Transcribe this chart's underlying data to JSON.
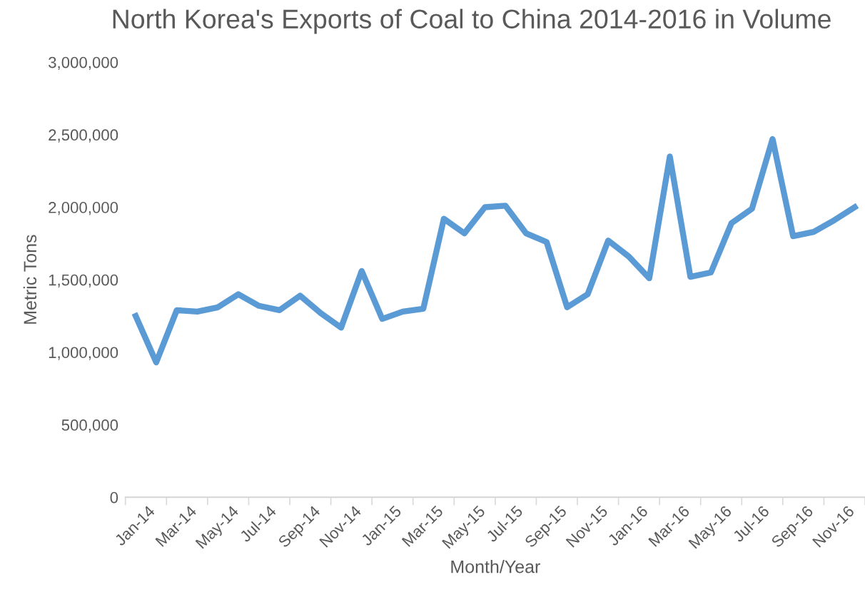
{
  "chart_data": {
    "type": "line",
    "title": "North Korea's Exports of Coal to China 2014-2016 in Volume",
    "xlabel": "Month/Year",
    "ylabel": "Metric Tons",
    "categories": [
      "Jan-14",
      null,
      "Mar-14",
      null,
      "May-14",
      null,
      "Jul-14",
      null,
      "Sep-14",
      null,
      "Nov-14",
      null,
      "Jan-15",
      null,
      "Mar-15",
      null,
      "May-15",
      null,
      "Jul-15",
      null,
      "Sep-15",
      null,
      "Nov-15",
      null,
      "Jan-16",
      null,
      "Mar-16",
      null,
      "May-16",
      null,
      "Jul-16",
      null,
      "Sep-16",
      null,
      "Nov-16",
      null
    ],
    "series": [
      {
        "color": "#5b9bd5",
        "values": [
          1250000,
          930000,
          1290000,
          1280000,
          1310000,
          1400000,
          1320000,
          1290000,
          1390000,
          1270000,
          1170000,
          1560000,
          1230000,
          1280000,
          1300000,
          1920000,
          1820000,
          2000000,
          2010000,
          1820000,
          1760000,
          1310000,
          1400000,
          1770000,
          1660000,
          1510000,
          2350000,
          1520000,
          1550000,
          1890000,
          1990000,
          2470000,
          1800000,
          1830000,
          1910000,
          2000000
        ]
      }
    ],
    "ylim": [
      0,
      3000000
    ],
    "yticks": [
      {
        "value": 0,
        "label": "0"
      },
      {
        "value": 500000,
        "label": "500,000"
      },
      {
        "value": 1000000,
        "label": "1,000,000"
      },
      {
        "value": 1500000,
        "label": "1,500,000"
      },
      {
        "value": 2000000,
        "label": "2,000,000"
      },
      {
        "value": 2500000,
        "label": "2,500,000"
      },
      {
        "value": 3000000,
        "label": "3,000,000"
      }
    ],
    "grid": false,
    "legend": false,
    "marker": "none",
    "line_style": "solid"
  }
}
